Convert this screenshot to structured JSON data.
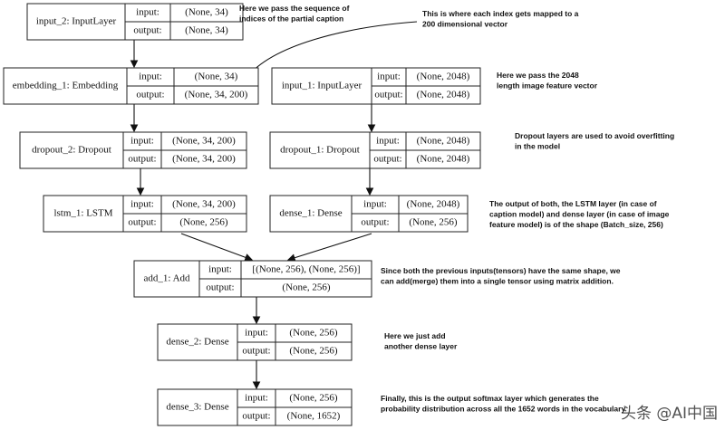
{
  "nodes": [
    {
      "name": "input_2: InputLayer",
      "input_label": "input:",
      "input": "(None, 34)",
      "output_label": "output:",
      "output": "(None, 34)"
    },
    {
      "name": "embedding_1: Embedding",
      "input_label": "input:",
      "input": "(None, 34)",
      "output_label": "output:",
      "output": "(None, 34, 200)"
    },
    {
      "name": "input_1: InputLayer",
      "input_label": "input:",
      "input": "(None, 2048)",
      "output_label": "output:",
      "output": "(None, 2048)"
    },
    {
      "name": "dropout_2: Dropout",
      "input_label": "input:",
      "input": "(None, 34, 200)",
      "output_label": "output:",
      "output": "(None, 34, 200)"
    },
    {
      "name": "dropout_1: Dropout",
      "input_label": "input:",
      "input": "(None, 2048)",
      "output_label": "output:",
      "output": "(None, 2048)"
    },
    {
      "name": "lstm_1: LSTM",
      "input_label": "input:",
      "input": "(None, 34, 200)",
      "output_label": "output:",
      "output": "(None, 256)"
    },
    {
      "name": "dense_1: Dense",
      "input_label": "input:",
      "input": "(None, 2048)",
      "output_label": "output:",
      "output": "(None, 256)"
    },
    {
      "name": "add_1: Add",
      "input_label": "input:",
      "input": "[(None, 256), (None, 256)]",
      "output_label": "output:",
      "output": "(None, 256)"
    },
    {
      "name": "dense_2: Dense",
      "input_label": "input:",
      "input": "(None, 256)",
      "output_label": "output:",
      "output": "(None, 256)"
    },
    {
      "name": "dense_3: Dense",
      "input_label": "input:",
      "input": "(None, 256)",
      "output_label": "output:",
      "output": "(None, 1652)"
    }
  ],
  "annotations": [
    {
      "lines": [
        "Here we pass the sequence of",
        "indices of the partial caption"
      ]
    },
    {
      "lines": [
        "This is where each index gets mapped to a",
        "200 dimensional vector"
      ]
    },
    {
      "lines": [
        "Here we pass the 2048",
        "length image feature vector"
      ]
    },
    {
      "lines": [
        "Dropout layers are used to avoid overfitting",
        "in the model"
      ]
    },
    {
      "lines": [
        "The output of both, the LSTM layer (in case of",
        "caption model) and dense layer (in case of image",
        "feature model) is of the shape (Batch_size, 256)"
      ]
    },
    {
      "lines": [
        "Since both the previous inputs(tensors) have the same shape, we",
        "can add(merge) them into a single tensor using matrix addition."
      ]
    },
    {
      "lines": [
        "Here we just add",
        "another dense layer"
      ]
    },
    {
      "lines": [
        "Finally, this is the output softmax layer which generates the",
        "probability distribution across all the 1652 words in the vocabulary"
      ]
    }
  ],
  "watermark": "头条 @AI中国"
}
